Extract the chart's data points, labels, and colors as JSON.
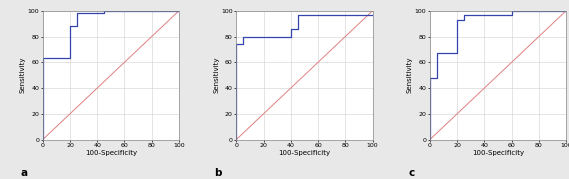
{
  "roc_a": {
    "x": [
      0,
      0,
      20,
      20,
      25,
      25,
      45,
      45,
      100
    ],
    "y": [
      0,
      63,
      63,
      88,
      88,
      98,
      98,
      100,
      100
    ],
    "label": "a"
  },
  "roc_b": {
    "x": [
      0,
      0,
      5,
      5,
      40,
      40,
      45,
      45,
      100
    ],
    "y": [
      0,
      74,
      74,
      80,
      80,
      86,
      86,
      97,
      97
    ],
    "label": "b"
  },
  "roc_c": {
    "x": [
      0,
      0,
      5,
      5,
      20,
      20,
      25,
      25,
      60,
      60,
      100
    ],
    "y": [
      0,
      48,
      48,
      67,
      67,
      93,
      93,
      97,
      97,
      100,
      100
    ],
    "label": "c"
  },
  "curve_color": "#3344aa",
  "diag_color": "#e08080",
  "grid_color": "#d0d0d0",
  "bg_color": "#ffffff",
  "fig_bg_color": "#e8e8e8",
  "curve_linewidth": 0.9,
  "diag_linewidth": 0.7,
  "xlabel": "100-Specificity",
  "ylabel": "Sensitivity",
  "xlim": [
    0,
    100
  ],
  "ylim": [
    0,
    100
  ],
  "xticks": [
    0,
    20,
    40,
    60,
    80,
    100
  ],
  "yticks": [
    0,
    20,
    40,
    60,
    80,
    100
  ],
  "tick_fontsize": 4.5,
  "label_fontsize": 5.0,
  "panel_label_fontsize": 7.5
}
